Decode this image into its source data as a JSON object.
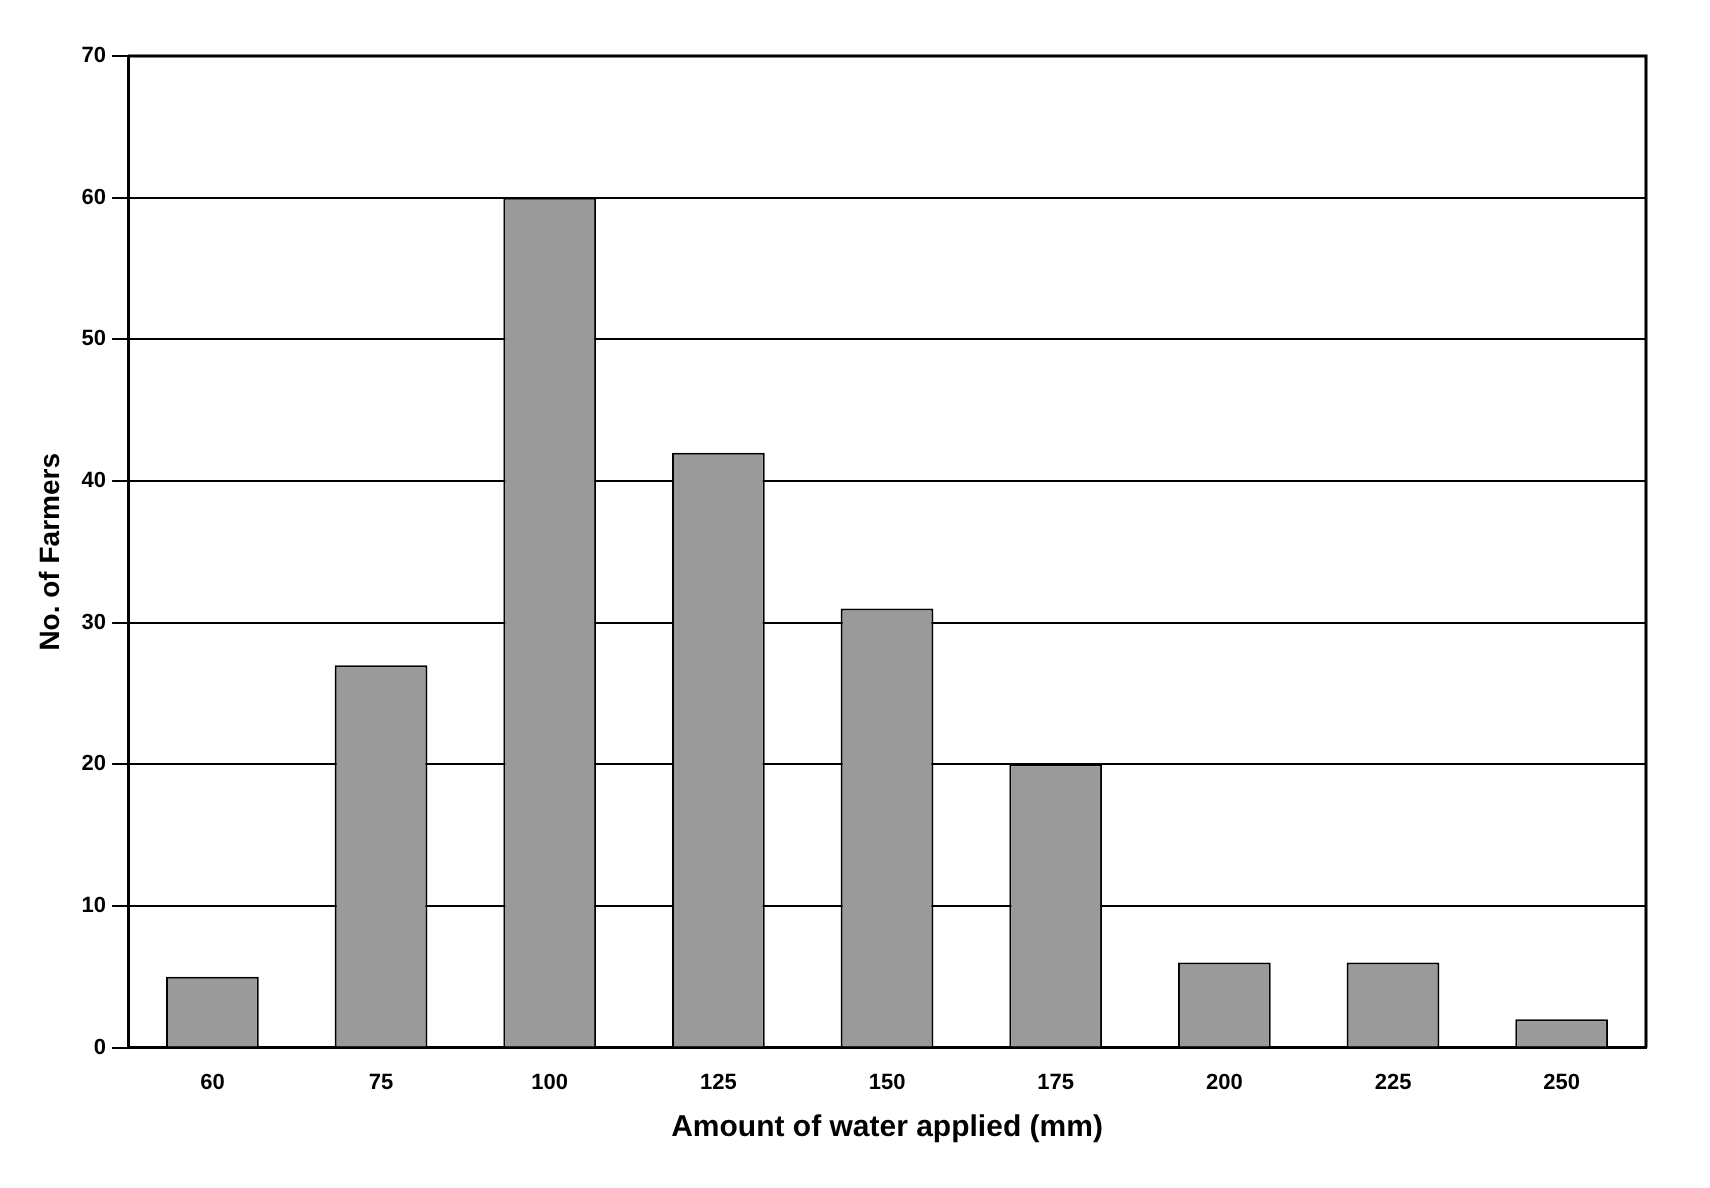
{
  "chart_data": {
    "type": "bar",
    "xlabel": "Amount of water applied (mm)",
    "ylabel": "No. of Farmers",
    "categories": [
      "60",
      "75",
      "100",
      "125",
      "150",
      "175",
      "200",
      "225",
      "250"
    ],
    "values": [
      5,
      27,
      60,
      42,
      31,
      20,
      6,
      6,
      2
    ],
    "color": "#9a9a9a",
    "ylim": [
      0,
      70
    ],
    "yticks": [
      0,
      10,
      20,
      30,
      40,
      50,
      60,
      70
    ],
    "grid": "y"
  }
}
